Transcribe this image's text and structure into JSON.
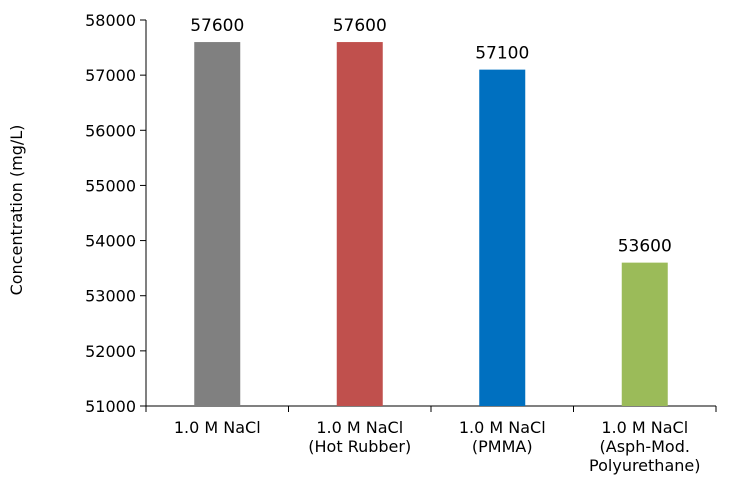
{
  "chart_data": {
    "type": "bar",
    "categories": [
      [
        "1.0 M NaCl"
      ],
      [
        "1.0 M NaCl",
        "(Hot Rubber)"
      ],
      [
        "1.0 M NaCl",
        "(PMMA)"
      ],
      [
        "1.0 M NaCl",
        "(Asph-Mod.",
        "Polyurethane)"
      ]
    ],
    "values": [
      57600,
      57600,
      57100,
      53600
    ],
    "data_labels": [
      "57600",
      "57600",
      "57100",
      "53600"
    ],
    "colors": [
      "#808080",
      "#c0504d",
      "#0070c0",
      "#9bbb59"
    ],
    "title": "",
    "xlabel": "",
    "ylabel": "Concentration (mg/L)",
    "ylim": [
      51000,
      58000
    ],
    "yticks": [
      51000,
      52000,
      53000,
      54000,
      55000,
      56000,
      57000,
      58000
    ],
    "grid": false,
    "legend": "none"
  }
}
